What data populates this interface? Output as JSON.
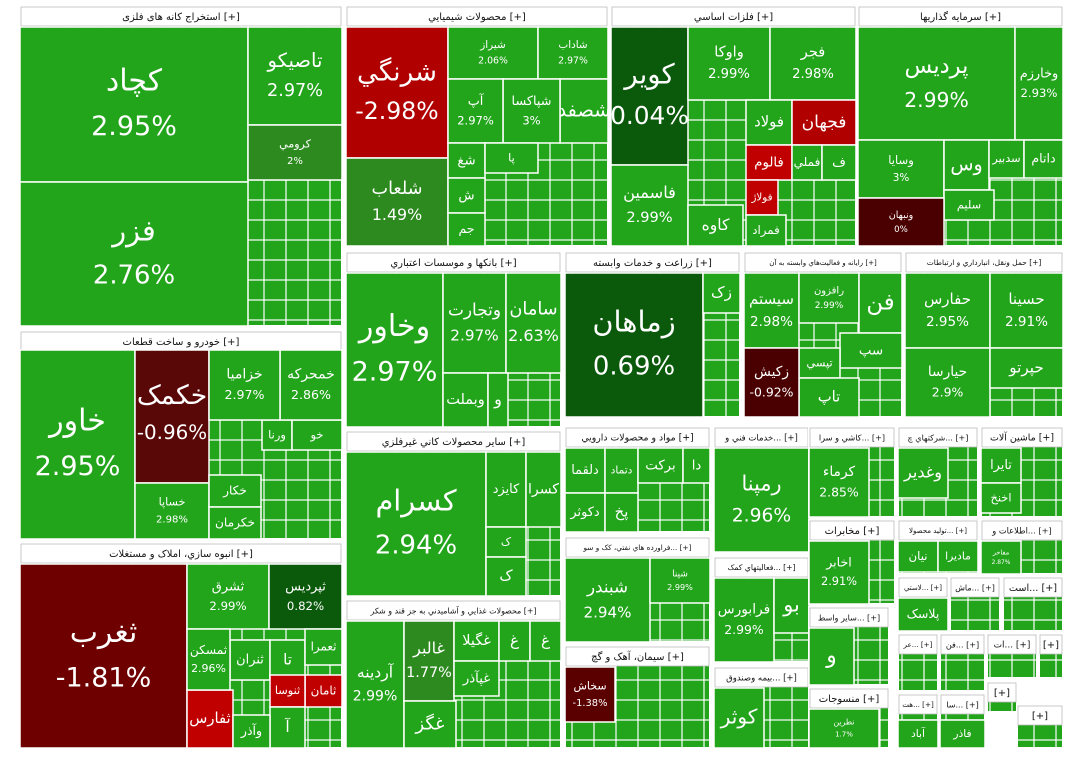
{
  "tile_color": "#22a41b",
  "sectors": [
    {
      "title": "استخراج کانه های فلزی [+]",
      "tiles": [
        {
          "name": "کچاد",
          "change": "2.95%"
        },
        {
          "name": "فزر",
          "change": "2.76%"
        },
        {
          "name": "تاصيکو",
          "change": "2.97%"
        },
        {
          "name": "کرومي",
          "change": "2%",
          "color": "#2d8a1f"
        }
      ]
    },
    {
      "title": "خودرو و ساخت قطعات [+]",
      "tiles": [
        {
          "name": "خاور",
          "change": "2.95%"
        },
        {
          "name": "خکمک",
          "change": "-0.96%",
          "color": "#5a0707"
        },
        {
          "name": "خساپا",
          "change": "2.98%"
        },
        {
          "name": "خکار"
        },
        {
          "name": "خکرمان"
        },
        {
          "name": "ورنا"
        },
        {
          "name": "خو"
        },
        {
          "name": "خمحرکه",
          "change": "2.86%"
        },
        {
          "name": "خزامیا",
          "change": "2.97%"
        }
      ]
    },
    {
      "title": "انبوه سازي، املاک و مستغلات [+]",
      "tiles": [
        {
          "name": "ثغرب",
          "change": "-1.81%",
          "color": "#6e0000"
        },
        {
          "name": "ثشرق",
          "change": "2.99%"
        },
        {
          "name": "ثپردیس",
          "change": "0.82%",
          "color": "#0b5a0b"
        },
        {
          "name": "ثنران"
        },
        {
          "name": "تا"
        },
        {
          "name": "ثعمرا"
        },
        {
          "name": "ثامان",
          "color": "#c00000"
        },
        {
          "name": "ثنوسا",
          "color": "#c00000"
        },
        {
          "name": "ثفارس",
          "color": "#c00000"
        },
        {
          "name": "آ"
        },
        {
          "name": "وآذر"
        },
        {
          "name": "ثمسکن",
          "change": "2.96%"
        }
      ]
    },
    {
      "title": "محصولات شيميايي [+]",
      "tiles": [
        {
          "name": "شرنگي",
          "change": "-2.98%",
          "color": "#b00000"
        },
        {
          "name": "شلعاب",
          "change": "1.49%",
          "color": "#2d8a1f"
        },
        {
          "name": "شیراز",
          "change": "2.06%"
        },
        {
          "name": "شاداب",
          "change": "2.97%"
        },
        {
          "name": "شصفد"
        },
        {
          "name": "شپاکسا",
          "change": "3%"
        },
        {
          "name": "آپ",
          "change": "2.97%"
        },
        {
          "name": "شغ"
        },
        {
          "name": "ش"
        },
        {
          "name": "جم"
        },
        {
          "name": "پا"
        }
      ]
    },
    {
      "title": "فلزات اساسي [+]",
      "tiles": [
        {
          "name": "کوير",
          "change": "0.04%",
          "color": "#0b5a0b"
        },
        {
          "name": "فاسمين",
          "change": "2.99%"
        },
        {
          "name": "واوکا",
          "change": "2.99%"
        },
        {
          "name": "فجر",
          "change": "2.98%"
        },
        {
          "name": "فولاد"
        },
        {
          "name": "فجهان",
          "color": "#b00000"
        },
        {
          "name": "فالوم",
          "color": "#c00000"
        },
        {
          "name": "فولاژ",
          "color": "#c00000"
        },
        {
          "name": "فملي"
        },
        {
          "name": "ف"
        },
        {
          "name": "کاوه"
        },
        {
          "name": "فمراد"
        }
      ]
    },
    {
      "title": "سرمايه گذاريها [+]",
      "tiles": [
        {
          "name": "پرديس",
          "change": "2.99%"
        },
        {
          "name": "وخارزم",
          "change": "2.93%"
        },
        {
          "name": "وسایا",
          "change": "3%"
        },
        {
          "name": "وس"
        },
        {
          "name": "سدبير"
        },
        {
          "name": "داتام"
        },
        {
          "name": "سليم"
        },
        {
          "name": "ونبهان",
          "change": "0%",
          "color": "#4a0000"
        }
      ]
    },
    {
      "title": "بانکها و موسسات اعتباري [+]",
      "tiles": [
        {
          "name": "وخاور",
          "change": "2.97%"
        },
        {
          "name": "وتجارت",
          "change": "2.97%"
        },
        {
          "name": "سامان",
          "change": "2.63%"
        },
        {
          "name": "وبملت"
        },
        {
          "name": "و"
        }
      ]
    },
    {
      "title": "زراعت و خدمات وابسته [+]",
      "tiles": [
        {
          "name": "زماهان",
          "change": "0.69%",
          "color": "#0b5a0b"
        },
        {
          "name": "زک"
        }
      ]
    },
    {
      "title": "رايانه و فعاليت‌هاي وابسته به آن [+]",
      "tiles": [
        {
          "name": "سیستم",
          "change": "2.98%"
        },
        {
          "name": "رافزون",
          "change": "2.99%"
        },
        {
          "name": "فن"
        },
        {
          "name": "سپ"
        },
        {
          "name": "تپسي"
        },
        {
          "name": "تاپ"
        },
        {
          "name": "زکیش",
          "change": "-0.92%",
          "color": "#4a0000"
        }
      ]
    },
    {
      "title": "حمل ونقل، انبارداري و ارتباطات [+]",
      "tiles": [
        {
          "name": "حفارس",
          "change": "2.95%"
        },
        {
          "name": "حسينا",
          "change": "2.91%"
        },
        {
          "name": "حيارسا",
          "change": "2.9%"
        },
        {
          "name": "حپرتو"
        }
      ]
    },
    {
      "title": "ساير محصولات کاني غيرفلزي [+]",
      "tiles": [
        {
          "name": "کسرام",
          "change": "2.94%"
        },
        {
          "name": "کايزد"
        },
        {
          "name": "کسرا"
        },
        {
          "name": "ک"
        },
        {
          "name": "ک"
        }
      ]
    },
    {
      "title": "محصولات غذايي و آشاميدني به جز قند و شکر [+]",
      "tiles": [
        {
          "name": "آردينه",
          "change": "2.99%"
        },
        {
          "name": "غالبر",
          "change": "1.77%",
          "color": "#2d8a1f"
        },
        {
          "name": "غگيلا"
        },
        {
          "name": "غ"
        },
        {
          "name": "غ"
        },
        {
          "name": "غپآذر"
        },
        {
          "name": "غگز"
        }
      ]
    },
    {
      "title": "مواد و محصولات دارويي [+]",
      "tiles": [
        {
          "name": "دلقما"
        },
        {
          "name": "دتماد"
        },
        {
          "name": "برکت"
        },
        {
          "name": "دا"
        },
        {
          "name": "دکوثر"
        },
        {
          "name": "پخ"
        }
      ]
    },
    {
      "title": "فراورده هاي نفتي، کک و سو... [+]",
      "tiles": [
        {
          "name": "شبندر",
          "change": "2.94%"
        },
        {
          "name": "شپنا",
          "change": "2.99%"
        }
      ]
    },
    {
      "title": "سيمان، آهک و گچ [+]",
      "tiles": [
        {
          "name": "سخاش",
          "change": "-1.38%",
          "color": "#5a0000"
        }
      ]
    },
    {
      "title": "خدمات فني و... [+]",
      "tiles": [
        {
          "name": "رمپنا",
          "change": "2.96%"
        }
      ]
    },
    {
      "title": "فعاليتهاي کمک... [+]",
      "tiles": [
        {
          "name": "فرابورس",
          "change": "2.99%"
        },
        {
          "name": "بو"
        }
      ]
    },
    {
      "title": "بيمه وصندوق... [+]",
      "tiles": [
        {
          "name": "کوثر"
        }
      ]
    },
    {
      "title": "کاشي و سرا... [+]",
      "tiles": [
        {
          "name": "کرماء",
          "change": "2.85%"
        }
      ]
    },
    {
      "title": "شرکتهاي چ... [+]",
      "tiles": [
        {
          "name": "وغدير"
        }
      ]
    },
    {
      "title": "ماشين آلات [+]",
      "tiles": [
        {
          "name": "تايرا"
        },
        {
          "name": "اخنخ"
        }
      ]
    },
    {
      "title": "مخابرات [+]",
      "tiles": [
        {
          "name": "اخابر",
          "change": "2.91%"
        }
      ]
    },
    {
      "title": "توليد محصولا... [+]",
      "tiles": [
        {
          "name": "نيان"
        },
        {
          "name": "ماديرا"
        }
      ]
    },
    {
      "title": "اطلاعات و... [+]",
      "tiles": [
        {
          "name": "مفاخر",
          "change": "2.87%"
        }
      ]
    },
    {
      "title": "ساير واسط... [+]",
      "tiles": [
        {
          "name": "و"
        }
      ]
    },
    {
      "title": "منسوجات [+]",
      "tiles": [
        {
          "name": "نطرين",
          "change": "1.7%"
        }
      ]
    },
    {
      "title": "لاستي... [+]",
      "tiles": [
        {
          "name": "پلاسک"
        }
      ]
    },
    {
      "title": "ماش... [+]",
      "tiles": []
    },
    {
      "title": "است... [+]",
      "tiles": []
    },
    {
      "title": "عر... [+]",
      "tiles": []
    },
    {
      "title": "فن... [+]",
      "tiles": []
    },
    {
      "title": "ات... [+]",
      "tiles": []
    },
    {
      "title": "هت... [+]",
      "tiles": [
        {
          "name": "آباد"
        }
      ]
    },
    {
      "title": "سا... [+]",
      "tiles": [
        {
          "name": "فاذر"
        }
      ]
    },
    {
      "title": "[+]",
      "tiles": []
    },
    {
      "title": "[+]",
      "tiles": []
    },
    {
      "title": "[+]",
      "tiles": []
    }
  ]
}
